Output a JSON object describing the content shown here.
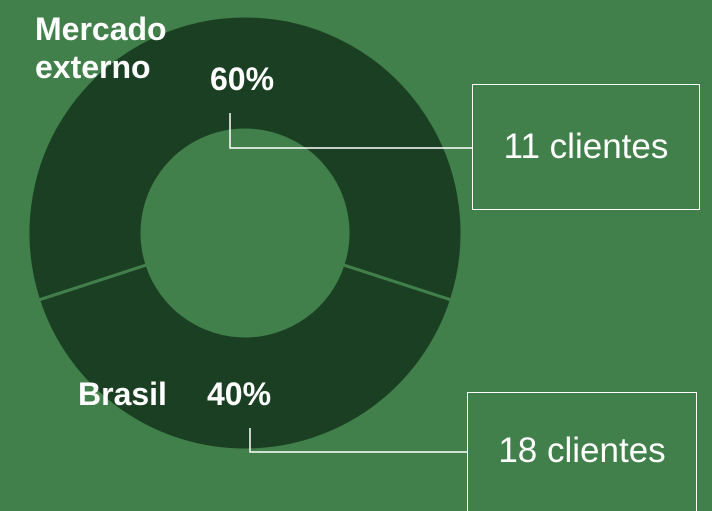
{
  "chart_data": {
    "type": "donut",
    "categories": [
      "Mercado externo",
      "Brasil"
    ],
    "values": [
      60,
      40
    ],
    "value_labels": [
      "60%",
      "40%"
    ],
    "color": "#1b3f22",
    "annotations": [
      {
        "text": "11 clientes"
      },
      {
        "text": "18 clientes"
      }
    ]
  }
}
